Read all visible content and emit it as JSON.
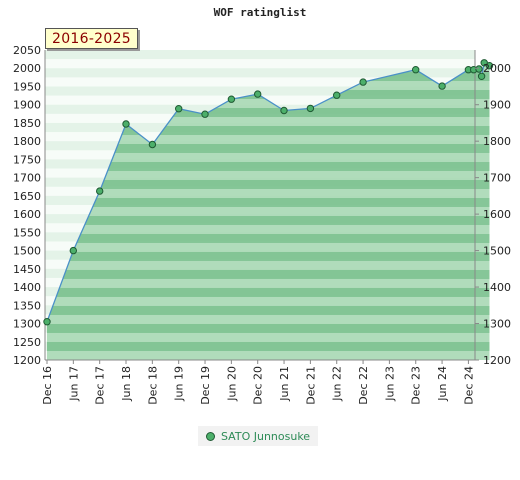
{
  "header": {
    "title": "WOF ratinglist",
    "period_badge": "2016-2025"
  },
  "legend": {
    "series_label": "SATO Junnosuke"
  },
  "colors": {
    "line": "#4a90c8",
    "marker_fill": "#4caf6a",
    "marker_stroke": "#1f5a33",
    "area_dark": "#78c08c",
    "area_light": "#a8d8b4",
    "band_light": "#e4f3e8",
    "band_white": "#f7fcf8"
  },
  "chart_data": {
    "type": "area",
    "title": "WOF ratinglist",
    "xlabel": "",
    "ylabel": "",
    "ylim": [
      1200,
      2050
    ],
    "y_ticks_left": [
      1200,
      1250,
      1300,
      1350,
      1400,
      1450,
      1500,
      1550,
      1600,
      1650,
      1700,
      1750,
      1800,
      1850,
      1900,
      1950,
      2000,
      2050
    ],
    "y_ticks_right": [
      1200,
      1300,
      1400,
      1500,
      1600,
      1700,
      1800,
      1900,
      2000
    ],
    "x_ticks": [
      "Dec 16",
      "Jun 17",
      "Dec 17",
      "Jun 18",
      "Dec 18",
      "Jun 19",
      "Dec 19",
      "Jun 20",
      "Dec 20",
      "Jun 21",
      "Dec 21",
      "Jun 22",
      "Dec 22",
      "Jun 23",
      "Dec 23",
      "Jun 24",
      "Dec 24"
    ],
    "grid": false,
    "legend_position": "bottom",
    "series": [
      {
        "name": "SATO Junnosuke",
        "points": [
          {
            "x": 0,
            "y": 1305
          },
          {
            "x": 1,
            "y": 1500
          },
          {
            "x": 2,
            "y": 1663
          },
          {
            "x": 3,
            "y": 1847
          },
          {
            "x": 4,
            "y": 1791
          },
          {
            "x": 5,
            "y": 1889
          },
          {
            "x": 6,
            "y": 1874
          },
          {
            "x": 7,
            "y": 1915
          },
          {
            "x": 8,
            "y": 1929
          },
          {
            "x": 9,
            "y": 1884
          },
          {
            "x": 10,
            "y": 1890
          },
          {
            "x": 11,
            "y": 1926
          },
          {
            "x": 12,
            "y": 1962
          },
          {
            "x": 14,
            "y": 1996
          },
          {
            "x": 15,
            "y": 1951
          },
          {
            "x": 16.0,
            "y": 1996
          },
          {
            "x": 16.2,
            "y": 1996
          },
          {
            "x": 16.4,
            "y": 1998
          },
          {
            "x": 16.5,
            "y": 1978
          },
          {
            "x": 16.6,
            "y": 2015
          },
          {
            "x": 16.8,
            "y": 2007
          }
        ]
      }
    ]
  }
}
